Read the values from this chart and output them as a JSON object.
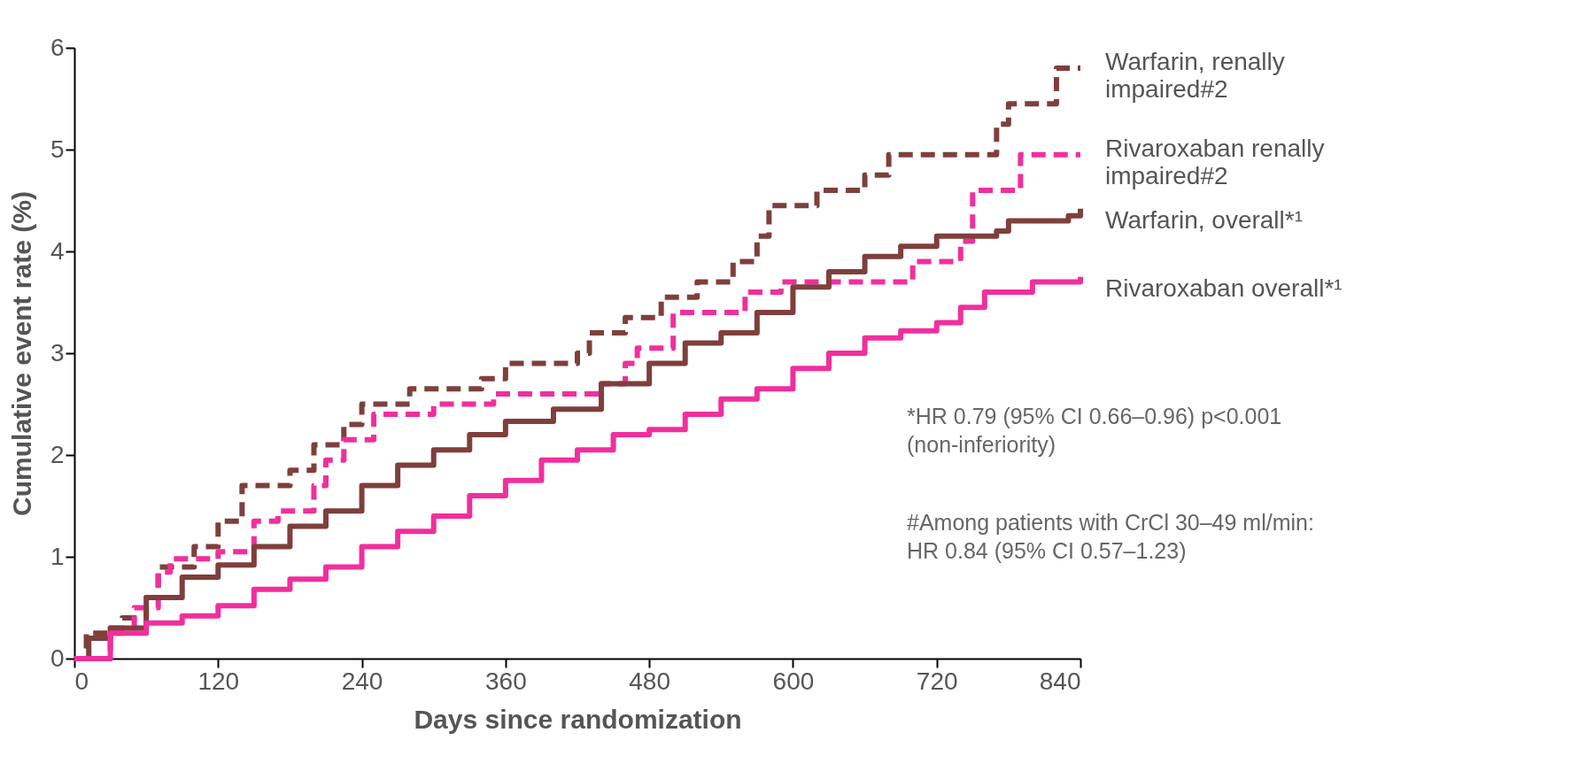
{
  "chart_data": {
    "type": "step",
    "xlabel": "Days since randomization",
    "ylabel": "Cumulative event rate (%)",
    "xlim": [
      0,
      840
    ],
    "xticks": [
      0,
      120,
      240,
      360,
      480,
      600,
      720,
      840
    ],
    "ylim": [
      0,
      6
    ],
    "yticks": [
      0,
      1,
      2,
      3,
      4,
      5,
      6
    ],
    "grid": false,
    "series": [
      {
        "name": "Warfarin, renally impaired#2",
        "color": "#7f3f3c",
        "line_style": "dashed",
        "x": [
          0,
          10,
          40,
          60,
          70,
          100,
          120,
          140,
          180,
          200,
          225,
          240,
          280,
          340,
          360,
          420,
          430,
          460,
          490,
          520,
          550,
          570,
          580,
          620,
          660,
          680,
          770,
          780,
          820,
          840
        ],
        "values": [
          0,
          0.25,
          0.4,
          0.6,
          0.9,
          1.1,
          1.35,
          1.7,
          1.85,
          2.1,
          2.3,
          2.5,
          2.65,
          2.75,
          2.9,
          3.0,
          3.2,
          3.35,
          3.55,
          3.7,
          3.9,
          4.15,
          4.45,
          4.6,
          4.75,
          4.95,
          5.25,
          5.45,
          5.8,
          5.8
        ]
      },
      {
        "name": "Rivaroxaban renally impaired#2",
        "color": "#f02f9d",
        "line_style": "dashed",
        "x": [
          0,
          30,
          50,
          70,
          80,
          120,
          150,
          170,
          200,
          210,
          225,
          250,
          300,
          350,
          440,
          460,
          470,
          500,
          560,
          590,
          700,
          740,
          750,
          790,
          840
        ],
        "values": [
          0,
          0.3,
          0.5,
          0.85,
          0.98,
          1.05,
          1.35,
          1.45,
          1.7,
          1.95,
          2.15,
          2.4,
          2.5,
          2.6,
          2.7,
          2.9,
          3.05,
          3.4,
          3.6,
          3.7,
          3.9,
          4.1,
          4.6,
          4.95,
          4.95
        ]
      },
      {
        "name": "Warfarin, overall*¹",
        "color": "#7f3f3c",
        "line_style": "solid",
        "x": [
          0,
          12,
          30,
          60,
          90,
          120,
          150,
          180,
          210,
          240,
          270,
          300,
          330,
          360,
          400,
          440,
          480,
          510,
          540,
          570,
          600,
          630,
          660,
          690,
          720,
          770,
          780,
          830,
          840
        ],
        "values": [
          0,
          0.2,
          0.3,
          0.6,
          0.8,
          0.92,
          1.1,
          1.3,
          1.45,
          1.7,
          1.9,
          2.05,
          2.2,
          2.33,
          2.45,
          2.7,
          2.9,
          3.1,
          3.2,
          3.4,
          3.65,
          3.8,
          3.95,
          4.05,
          4.15,
          4.2,
          4.3,
          4.35,
          4.42
        ]
      },
      {
        "name": "Rivaroxaban overall*¹",
        "color": "#f02f9d",
        "line_style": "solid",
        "x": [
          0,
          30,
          60,
          90,
          120,
          150,
          180,
          210,
          240,
          270,
          300,
          330,
          360,
          390,
          420,
          450,
          480,
          510,
          540,
          570,
          600,
          630,
          660,
          690,
          720,
          740,
          760,
          800,
          840
        ],
        "values": [
          0,
          0.25,
          0.35,
          0.42,
          0.52,
          0.68,
          0.78,
          0.9,
          1.1,
          1.25,
          1.4,
          1.6,
          1.75,
          1.95,
          2.05,
          2.2,
          2.25,
          2.4,
          2.55,
          2.65,
          2.85,
          3.0,
          3.15,
          3.22,
          3.3,
          3.45,
          3.6,
          3.7,
          3.75
        ]
      }
    ],
    "annotations": [
      "*HR 0.79 (95% CI 0.66–0.96) p<0.001\n   (non-inferiority)",
      "#Among patients with CrCl 30–49 ml/min:\n   HR 0.84 (95% CI 0.57–1.23)"
    ]
  }
}
